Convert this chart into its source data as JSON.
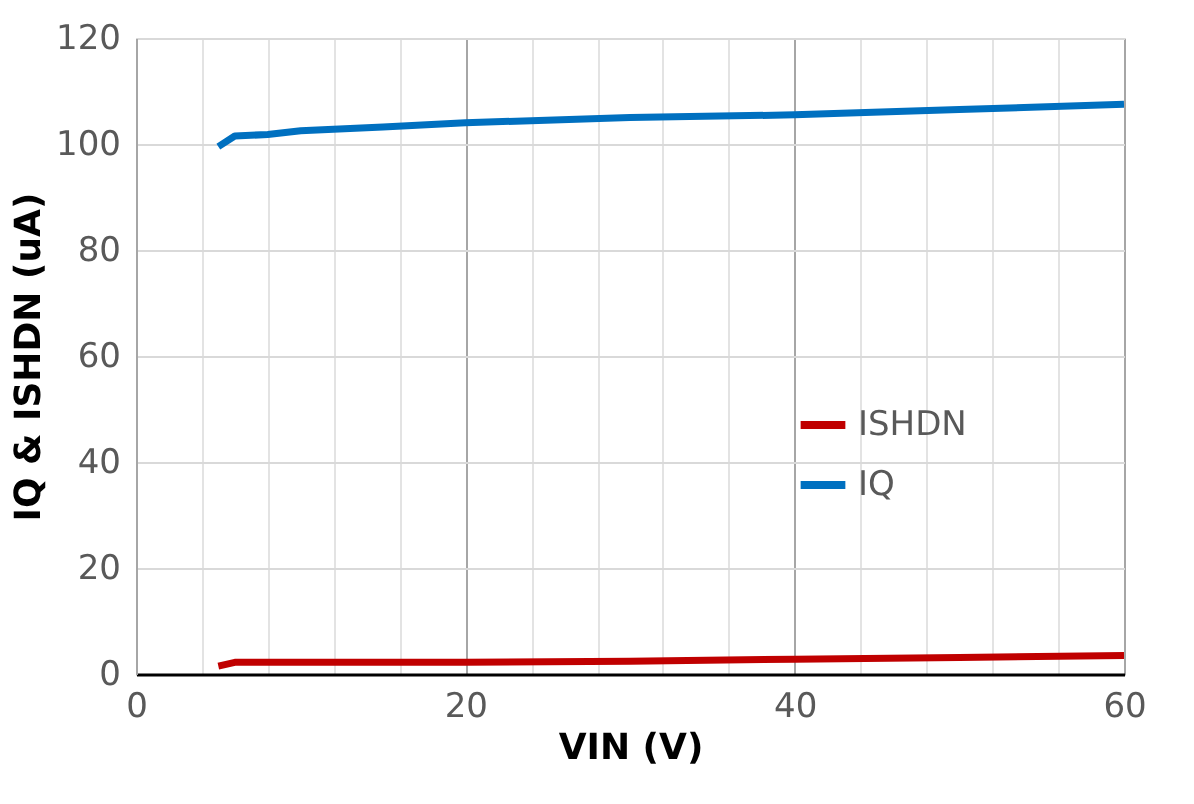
{
  "chart_data": {
    "type": "line",
    "xlabel": "VIN (V)",
    "ylabel": "IQ & ISHDN (uA)",
    "xlim": [
      0,
      60
    ],
    "ylim": [
      0,
      120
    ],
    "xticks": [
      0,
      {
        "value": 4,
        "label": null
      },
      {
        "value": 8,
        "label": null
      },
      {
        "value": 12,
        "label": null
      },
      {
        "value": 16,
        "label": null
      },
      20,
      {
        "value": 24,
        "label": null
      },
      {
        "value": 28,
        "label": null
      },
      {
        "value": 32,
        "label": null
      },
      {
        "value": 36,
        "label": null
      },
      40,
      {
        "value": 44,
        "label": null
      },
      {
        "value": 48,
        "label": null
      },
      {
        "value": 52,
        "label": null
      },
      {
        "value": 56,
        "label": null
      },
      60
    ],
    "yticks": [
      0,
      20,
      40,
      60,
      80,
      100,
      120
    ],
    "grid": true,
    "legend": "right",
    "line_style": "solid",
    "marker": "none",
    "series": [
      {
        "name": "ISHDN",
        "color": "#c00000",
        "x": [
          5,
          6,
          10,
          20,
          30,
          40,
          50,
          60
        ],
        "values": [
          1.5,
          2.2,
          2.2,
          2.2,
          2.4,
          2.8,
          3.1,
          3.5
        ]
      },
      {
        "name": "IQ",
        "color": "#0070c0",
        "x": [
          5,
          6,
          8,
          10,
          15,
          20,
          30,
          40,
          50,
          60
        ],
        "values": [
          99.5,
          101.5,
          101.8,
          102.5,
          103.2,
          104,
          105,
          105.5,
          106.5,
          107.5
        ]
      }
    ]
  }
}
